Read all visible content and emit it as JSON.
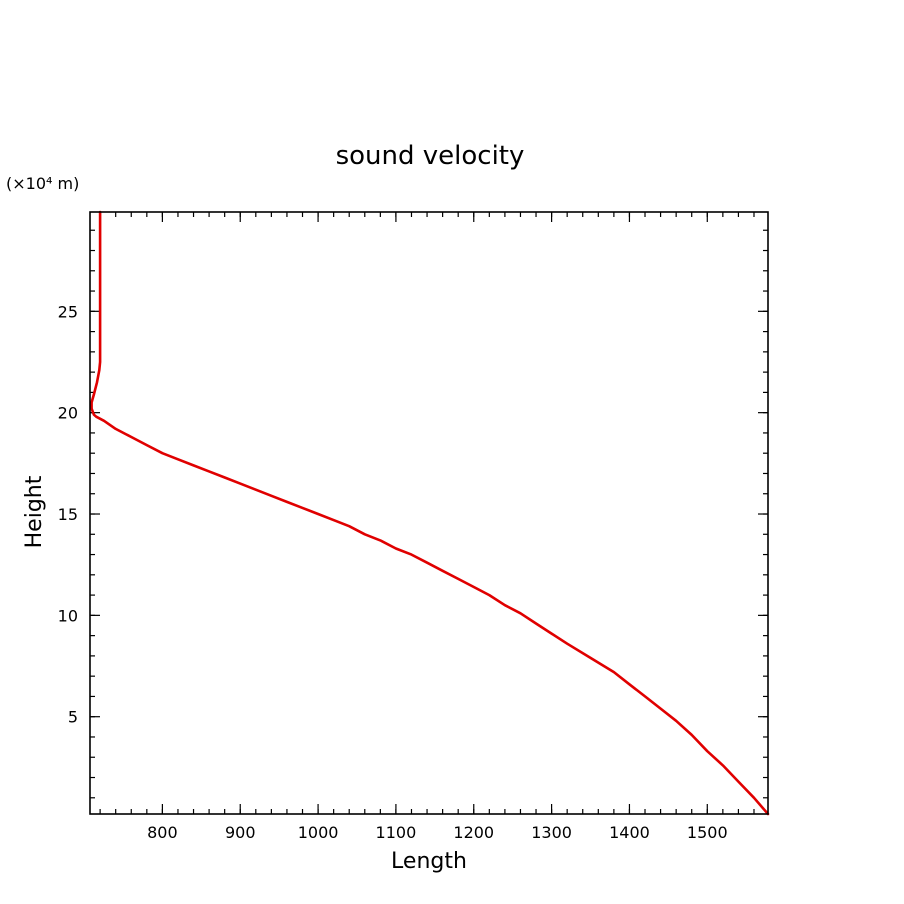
{
  "chart_data": {
    "type": "line",
    "title": "sound velocity",
    "xlabel": "Length",
    "ylabel": "Height",
    "y_unit_label": "(×10⁴ m)",
    "xlim": [
      707,
      1578
    ],
    "ylim": [
      0.2,
      29.9
    ],
    "x_ticks": [
      800,
      900,
      1000,
      1100,
      1200,
      1300,
      1400,
      1500
    ],
    "x_tick_labels": [
      "800",
      "900",
      "1000",
      "1100",
      "1200",
      "1300",
      "1400",
      "1500"
    ],
    "x_minor_step": 20,
    "y_ticks": [
      5,
      10,
      15,
      20,
      25
    ],
    "y_tick_labels": [
      "5",
      "10",
      "15",
      "20",
      "25"
    ],
    "y_minor_step": 1,
    "grid": false,
    "legend": "none",
    "colors": {
      "series": "#e00000",
      "frame": "#000000"
    },
    "series": [
      {
        "x": [
          1578,
          1560,
          1540,
          1520,
          1500,
          1480,
          1460,
          1440,
          1420,
          1400,
          1380,
          1350,
          1320,
          1300,
          1280,
          1260,
          1240,
          1220,
          1200,
          1180,
          1160,
          1140,
          1120,
          1100,
          1080,
          1060,
          1040,
          1020,
          1000,
          980,
          960,
          940,
          920,
          900,
          880,
          860,
          840,
          820,
          800,
          780,
          760,
          740,
          725,
          715,
          712,
          709,
          709,
          712,
          716,
          719,
          720,
          720,
          720,
          720
        ],
        "y": [
          0.2,
          1.0,
          1.8,
          2.6,
          3.3,
          4.1,
          4.8,
          5.4,
          6.0,
          6.6,
          7.2,
          7.9,
          8.6,
          9.1,
          9.6,
          10.1,
          10.5,
          11.0,
          11.4,
          11.8,
          12.2,
          12.6,
          13.0,
          13.3,
          13.7,
          14.0,
          14.4,
          14.7,
          15.0,
          15.3,
          15.6,
          15.9,
          16.2,
          16.5,
          16.8,
          17.1,
          17.4,
          17.7,
          18.0,
          18.4,
          18.8,
          19.2,
          19.6,
          19.8,
          19.9,
          20.2,
          20.5,
          20.9,
          21.5,
          22.1,
          22.5,
          25.0,
          27.5,
          29.9
        ]
      }
    ]
  }
}
